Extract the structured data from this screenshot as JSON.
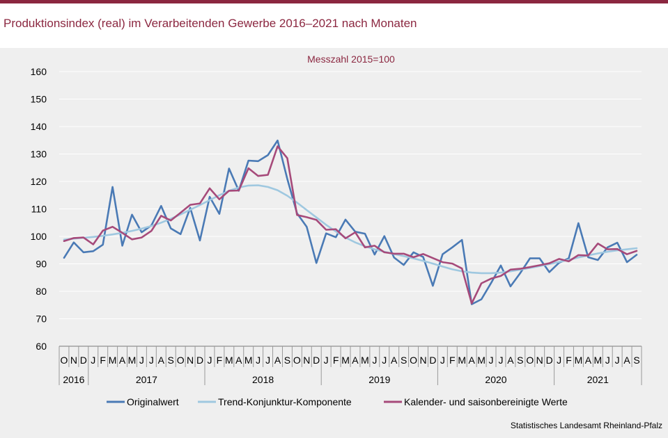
{
  "title": "Produktionsindex (real) im Verarbeitenden Gewerbe 2016–2021 nach Monaten",
  "source": "Statistisches Landesamt Rheinland-Pfalz",
  "chart_data": {
    "type": "line",
    "subtitle": "Messzahl 2015=100",
    "ylim": [
      60,
      160
    ],
    "yticks": [
      60,
      70,
      80,
      90,
      100,
      110,
      120,
      130,
      140,
      150,
      160
    ],
    "x": [
      "O",
      "N",
      "D",
      "J",
      "F",
      "M",
      "A",
      "M",
      "J",
      "J",
      "A",
      "S",
      "O",
      "N",
      "D",
      "J",
      "F",
      "M",
      "A",
      "M",
      "J",
      "J",
      "A",
      "S",
      "O",
      "N",
      "D",
      "J",
      "F",
      "M",
      "A",
      "M",
      "J",
      "J",
      "A",
      "S",
      "O",
      "N",
      "D",
      "J",
      "F",
      "M",
      "A",
      "M",
      "J",
      "J",
      "A",
      "S",
      "O",
      "N",
      "D",
      "J",
      "F",
      "M",
      "A",
      "M",
      "J",
      "J",
      "A",
      "S"
    ],
    "years": [
      {
        "label": "2016",
        "start": 0,
        "count": 3
      },
      {
        "label": "2017",
        "start": 3,
        "count": 12
      },
      {
        "label": "2018",
        "start": 15,
        "count": 12
      },
      {
        "label": "2019",
        "start": 27,
        "count": 12
      },
      {
        "label": "2020",
        "start": 39,
        "count": 12
      },
      {
        "label": "2021",
        "start": 51,
        "count": 9
      }
    ],
    "series": [
      {
        "name": "Originalwert",
        "color": "#4a7ab5",
        "values": [
          92.2,
          97.8,
          94.2,
          94.6,
          97.0,
          118.0,
          96.6,
          107.9,
          101.5,
          104.0,
          111.1,
          102.9,
          100.8,
          110.4,
          98.5,
          114.4,
          108.2,
          124.7,
          116.6,
          127.6,
          127.4,
          129.6,
          134.9,
          121.0,
          108.4,
          103.5,
          90.3,
          101.1,
          99.7,
          106.1,
          101.7,
          101.0,
          93.4,
          100.1,
          92.3,
          89.6,
          94.2,
          92.5,
          82.0,
          93.5,
          96.0,
          98.7,
          75.3,
          77.1,
          83.0,
          89.4,
          81.8,
          86.6,
          92.0,
          92.0,
          87.0,
          90.4,
          92.0,
          104.8,
          92.4,
          91.4,
          96.0,
          97.7,
          90.6,
          93.3
        ]
      },
      {
        "name": "Trend-Konjunktur-Komponente",
        "color": "#9fc8e0",
        "values": [
          98.8,
          99.2,
          99.5,
          99.8,
          100.2,
          100.7,
          101.3,
          102.0,
          102.8,
          103.8,
          105.0,
          106.4,
          108.0,
          109.7,
          111.4,
          113.2,
          115.0,
          116.6,
          117.8,
          118.5,
          118.6,
          118.0,
          116.8,
          114.8,
          112.3,
          109.6,
          106.9,
          104.2,
          101.8,
          99.6,
          97.8,
          96.4,
          95.3,
          94.4,
          93.6,
          92.8,
          92.0,
          91.1,
          90.1,
          89.0,
          88.0,
          87.3,
          86.8,
          86.6,
          86.6,
          86.8,
          87.3,
          87.9,
          88.5,
          89.2,
          89.9,
          90.7,
          91.5,
          92.3,
          93.1,
          93.8,
          94.4,
          94.9,
          95.3,
          95.7
        ]
      },
      {
        "name": "Kalender- und saisonbereinigte Werte",
        "color": "#a64a7a",
        "values": [
          98.3,
          99.4,
          99.6,
          97.1,
          102.1,
          103.5,
          101.3,
          98.9,
          99.6,
          102.0,
          107.5,
          105.8,
          108.6,
          111.5,
          112.0,
          117.5,
          113.5,
          116.6,
          116.7,
          124.8,
          122.0,
          122.4,
          132.8,
          128.5,
          107.8,
          107.0,
          106.0,
          102.4,
          102.6,
          99.3,
          101.5,
          96.0,
          96.6,
          94.2,
          93.7,
          93.7,
          92.4,
          93.6,
          92.1,
          90.6,
          90.1,
          88.3,
          75.6,
          82.9,
          84.6,
          85.6,
          87.9,
          88.2,
          88.8,
          89.5,
          90.2,
          91.8,
          90.9,
          93.2,
          93.0,
          97.4,
          95.3,
          95.4,
          93.5,
          94.7
        ]
      }
    ]
  }
}
